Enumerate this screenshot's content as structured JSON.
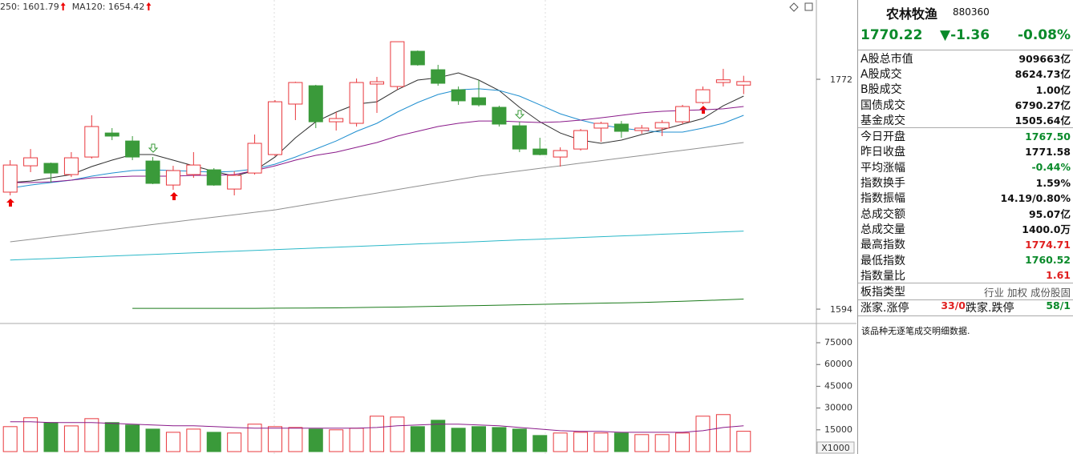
{
  "chart_data": {
    "type": "candlestick",
    "categories": [
      null,
      null,
      null,
      null,
      null,
      null,
      null,
      null,
      null,
      null,
      null,
      null,
      null,
      null,
      null,
      null,
      null,
      null,
      null,
      null,
      null,
      null,
      null,
      null,
      null,
      null,
      null,
      null,
      null,
      null,
      null,
      null,
      null,
      null,
      null,
      null,
      null
    ],
    "open": [
      1684.6,
      1705.0,
      1706.9,
      1698.2,
      1711.8,
      1730.4,
      1724.2,
      1708.7,
      1690.1,
      1698.2,
      1701.9,
      1687.0,
      1699.4,
      1713.7,
      1752.8,
      1767.0,
      1739.1,
      1737.9,
      1768.3,
      1766.4,
      1793.7,
      1779.4,
      1763.9,
      1757.7,
      1750.3,
      1736.0,
      1718.0,
      1711.8,
      1718.0,
      1734.2,
      1737.3,
      1732.3,
      1734.2,
      1739.1,
      1754.0,
      1769.5,
      1767.5
    ],
    "high": [
      1709.4,
      1718.0,
      1707.5,
      1715.6,
      1744.1,
      1734.2,
      1728.0,
      1711.8,
      1705.0,
      1715.6,
      1703.2,
      1700.7,
      1729.2,
      1755.9,
      1770.1,
      1767.7,
      1746.6,
      1772.6,
      1773.9,
      1801.1,
      1794.3,
      1783.2,
      1766.4,
      1771.4,
      1751.5,
      1739.1,
      1726.7,
      1719.3,
      1733.5,
      1739.1,
      1739.7,
      1736.6,
      1740.4,
      1752.2,
      1766.4,
      1780.1,
      1774.71
    ],
    "low": [
      1682.1,
      1700.1,
      1692.0,
      1696.3,
      1710.6,
      1724.9,
      1709.4,
      1690.8,
      1686.4,
      1695.7,
      1689.5,
      1682.1,
      1698.2,
      1712.5,
      1740.4,
      1734.2,
      1732.3,
      1735.4,
      1746.0,
      1763.9,
      1782.5,
      1767.0,
      1752.2,
      1750.9,
      1735.4,
      1715.6,
      1713.1,
      1704.4,
      1716.8,
      1723.6,
      1726.7,
      1729.8,
      1728.0,
      1737.3,
      1752.8,
      1766.4,
      1760.52
    ],
    "close": [
      1705.6,
      1711.2,
      1699.4,
      1711.2,
      1735.4,
      1728.0,
      1711.8,
      1691.4,
      1701.3,
      1705.6,
      1690.1,
      1697.6,
      1722.4,
      1754.6,
      1769.5,
      1739.1,
      1741.6,
      1769.5,
      1770.1,
      1801.1,
      1783.2,
      1768.9,
      1755.3,
      1752.2,
      1737.3,
      1718.0,
      1713.7,
      1716.8,
      1732.3,
      1737.9,
      1731.7,
      1734.2,
      1738.5,
      1750.9,
      1763.9,
      1771.58,
      1770.22
    ],
    "up_color": "#e8383d",
    "down_color": "#3a9a3a",
    "ylim": [
      1583.5,
      1833.4
    ],
    "yticks": [
      1772,
      1594
    ],
    "series": [
      {
        "color": "#303030",
        "values": [
          1692.0,
          1693.2,
          1695.7,
          1698.2,
          1704.4,
          1709.4,
          1713.7,
          1713.7,
          1709.4,
          1705.0,
          1700.7,
          1697.0,
          1701.3,
          1711.8,
          1726.7,
          1739.1,
          1746.6,
          1752.8,
          1754.6,
          1763.9,
          1771.4,
          1773.2,
          1777.0,
          1771.4,
          1763.3,
          1750.3,
          1739.1,
          1730.4,
          1724.9,
          1722.4,
          1724.9,
          1729.2,
          1732.9,
          1737.3,
          1741.6,
          1751.5,
          1759.0
        ]
      },
      {
        "color": "#1f8fd0",
        "values": [
          1687.7,
          1690.1,
          1692.0,
          1693.9,
          1697.0,
          1699.4,
          1701.3,
          1701.9,
          1701.3,
          1700.7,
          1700.1,
          1700.7,
          1702.5,
          1706.3,
          1711.8,
          1718.0,
          1724.2,
          1731.7,
          1737.9,
          1746.6,
          1754.0,
          1760.2,
          1763.9,
          1764.6,
          1763.3,
          1759.0,
          1752.2,
          1745.3,
          1740.4,
          1736.6,
          1734.2,
          1732.3,
          1731.1,
          1731.1,
          1734.2,
          1737.9,
          1744.1
        ]
      },
      {
        "color": "#8a1a8a",
        "values": [
          1692.0,
          1692.0,
          1692.6,
          1693.9,
          1695.7,
          1696.3,
          1697.0,
          1697.0,
          1697.0,
          1697.6,
          1697.6,
          1698.2,
          1701.3,
          1705.0,
          1709.4,
          1713.1,
          1715.6,
          1719.3,
          1723.0,
          1728.0,
          1731.7,
          1735.4,
          1737.9,
          1739.7,
          1739.7,
          1739.1,
          1738.5,
          1739.1,
          1740.4,
          1742.2,
          1744.1,
          1746.0,
          1747.2,
          1747.8,
          1748.4,
          1749.1,
          1750.9
        ]
      },
      {
        "color": "#909090",
        "values": [
          1646.1,
          1648.0,
          1649.9,
          1651.8,
          1653.7,
          1655.6,
          1657.6,
          1659.5,
          1661.4,
          1663.3,
          1665.2,
          1667.1,
          1669.0,
          1670.9,
          1673.5,
          1676.1,
          1678.7,
          1681.3,
          1683.9,
          1686.6,
          1689.2,
          1691.8,
          1694.4,
          1697.0,
          1699.0,
          1701.0,
          1703.0,
          1705.0,
          1707.0,
          1709.0,
          1711.0,
          1713.0,
          1715.0,
          1717.0,
          1719.0,
          1721.0,
          1723.0
        ]
      },
      {
        "color": "#2bb8c8",
        "label": "MA120: 1654.42",
        "values": [
          1632.0,
          1632.6,
          1633.2,
          1633.9,
          1634.5,
          1635.1,
          1635.7,
          1636.4,
          1637.0,
          1637.6,
          1638.2,
          1638.9,
          1639.5,
          1640.1,
          1640.7,
          1641.3,
          1642.0,
          1642.6,
          1643.2,
          1643.8,
          1644.5,
          1645.1,
          1645.7,
          1646.3,
          1647.0,
          1647.6,
          1648.2,
          1648.8,
          1649.5,
          1650.1,
          1650.7,
          1651.3,
          1652.0,
          1652.6,
          1653.2,
          1653.8,
          1654.42
        ]
      },
      {
        "color": "#1a7a1a",
        "label": "250: 1601.79",
        "values": [
          null,
          null,
          null,
          null,
          null,
          null,
          1594.6,
          1594.6,
          1594.6,
          1594.6,
          1594.6,
          1594.6,
          1594.6,
          1594.7,
          1594.8,
          1594.9,
          1595.0,
          1595.2,
          1595.4,
          1595.6,
          1595.9,
          1596.2,
          1596.5,
          1596.8,
          1597.1,
          1597.4,
          1597.7,
          1598.0,
          1598.3,
          1598.6,
          1598.9,
          1599.2,
          1599.6,
          1600.1,
          1600.6,
          1601.2,
          1601.79
        ]
      }
    ],
    "volume": {
      "values": [
        17200,
        23300,
        20000,
        17700,
        22700,
        20000,
        18300,
        15500,
        13300,
        15500,
        13300,
        12800,
        18900,
        17200,
        16600,
        15500,
        15000,
        16100,
        24400,
        23800,
        17200,
        21600,
        16100,
        17200,
        16600,
        15500,
        11100,
        12800,
        13300,
        12800,
        12800,
        11700,
        11700,
        12800,
        24400,
        25500,
        14000
      ],
      "ylim": [
        0,
        86600
      ],
      "yticks": [
        75000,
        60000,
        45000,
        30000,
        15000
      ],
      "unit_label": "X1000",
      "series": [
        {
          "color": "#8a1a8a",
          "values": [
            20500,
            20500,
            20000,
            20000,
            20000,
            19400,
            18900,
            18300,
            17800,
            17800,
            17200,
            16600,
            16100,
            16100,
            16100,
            16100,
            16100,
            16100,
            16600,
            17800,
            18300,
            18900,
            18900,
            18300,
            17800,
            16600,
            15500,
            14400,
            13900,
            13900,
            13300,
            13300,
            13300,
            13300,
            14400,
            16600,
            17800
          ]
        }
      ]
    }
  },
  "panel": {
    "name": "农林牧渔",
    "code": "880360",
    "price": "1770.22",
    "change": "▼-1.36",
    "change_pct": "-0.08%",
    "quote_color": "#0a8a2a",
    "groups": [
      [
        {
          "label": "A股总市值",
          "value": "909663亿"
        },
        {
          "label": "A股成交",
          "value": "8624.73亿"
        },
        {
          "label": "B股成交",
          "value": "1.00亿"
        },
        {
          "label": "国债成交",
          "value": "6790.27亿"
        },
        {
          "label": "基金成交",
          "value": "1505.64亿"
        }
      ],
      [
        {
          "label": "今日开盘",
          "value": "1767.50",
          "color": "#0a8a2a"
        },
        {
          "label": "昨日收盘",
          "value": "1771.58"
        },
        {
          "label": "平均涨幅",
          "value": "-0.44%",
          "color": "#0a8a2a"
        },
        {
          "label": "指数换手",
          "value": "1.59%"
        },
        {
          "label": "指数振幅",
          "value": "14.19/0.80%"
        },
        {
          "label": "总成交额",
          "value": "95.07亿"
        },
        {
          "label": "总成交量",
          "value": "1400.0万"
        },
        {
          "label": "最高指数",
          "value": "1774.71",
          "color": "#e02020"
        },
        {
          "label": "最低指数",
          "value": "1760.52",
          "color": "#0a8a2a"
        },
        {
          "label": "指数量比",
          "value": "1.61",
          "color": "#e02020"
        }
      ],
      [
        {
          "label": "板指类型",
          "value": "行业 加权 成份股固",
          "color": "#555555"
        }
      ],
      [
        {
          "label": "涨家.涨停",
          "value": "33/0",
          "color": "#e02020"
        },
        {
          "label": "跌家.跌停",
          "value": "58/1",
          "color": "#0a8a2a"
        }
      ]
    ],
    "note": "该品种无逐笔成交明细数据."
  }
}
